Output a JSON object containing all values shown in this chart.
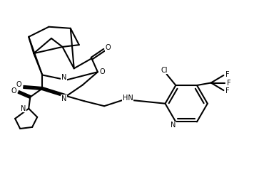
{
  "background_color": "#ffffff",
  "line_color": "#000000",
  "line_width": 1.5,
  "figsize": [
    3.91,
    2.42
  ],
  "dpi": 100,
  "xlim": [
    0,
    5.5
  ],
  "ylim": [
    0,
    2.8
  ]
}
